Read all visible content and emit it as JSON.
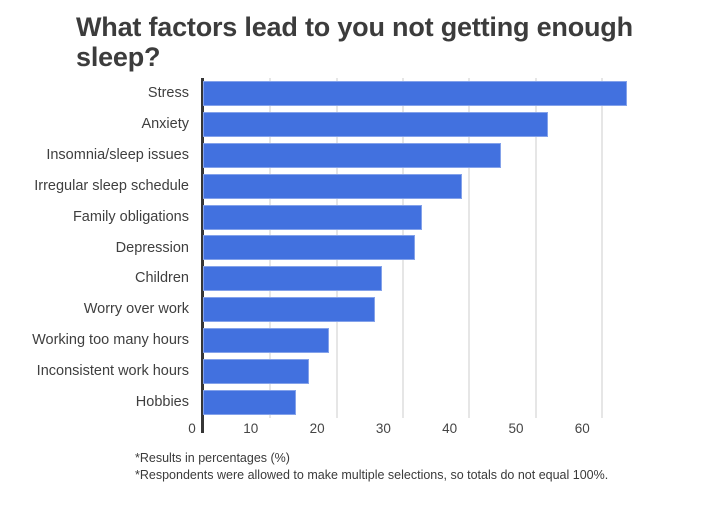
{
  "chart_data": {
    "type": "bar",
    "orientation": "horizontal",
    "title": "What factors lead to you not getting enough sleep?",
    "categories": [
      "Stress",
      "Anxiety",
      "Insomnia/sleep issues",
      "Irregular sleep schedule",
      "Family obligations",
      "Depression",
      "Children",
      "Worry over work",
      "Working too many hours",
      "Inconsistent work hours",
      "Hobbies"
    ],
    "values": [
      64,
      52,
      45,
      39,
      33,
      32,
      27,
      26,
      19,
      16,
      14
    ],
    "xlabel": "",
    "ylabel": "",
    "xlim": [
      0,
      70
    ],
    "x_ticks": [
      0,
      10,
      20,
      30,
      40,
      50,
      60
    ],
    "grid": "vertical-only",
    "legend": "none",
    "bar_color": "#4271df",
    "units": "percent",
    "footnotes": [
      "*Results in percentages (%)",
      "*Respondents were allowed to make multiple selections, so totals do not equal 100%."
    ]
  }
}
